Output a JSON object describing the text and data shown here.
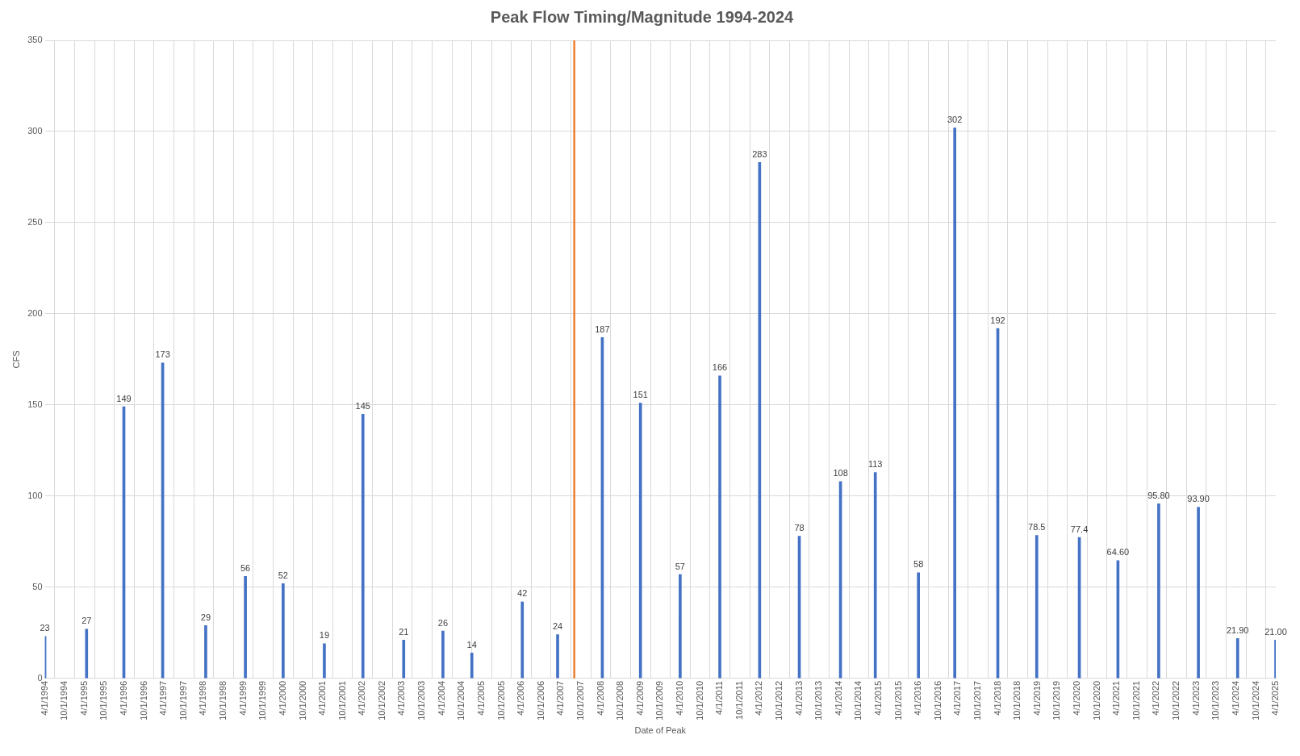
{
  "chart_data": {
    "type": "bar",
    "title": "Peak Flow Timing/Magnitude 1994-2024",
    "xlabel": "Date of Peak",
    "ylabel": "CFS",
    "x": [
      "1994-04-01",
      "1995-04-20",
      "1996-03-28",
      "1997-03-20",
      "1998-04-20",
      "1999-04-20",
      "2000-04-01",
      "2001-04-15",
      "2002-04-05",
      "2003-04-15",
      "2004-04-10",
      "2005-01-01",
      "2006-04-10",
      "2007-03-01",
      "2008-04-15",
      "2009-04-01",
      "2010-04-01",
      "2011-04-01",
      "2012-04-01",
      "2013-04-01",
      "2014-04-15",
      "2015-03-01",
      "2016-04-01",
      "2017-03-01",
      "2018-04-01",
      "2019-03-25",
      "2020-04-20",
      "2021-04-10",
      "2022-04-20",
      "2023-04-20",
      "2024-04-15",
      "2025-04-01"
    ],
    "values": [
      23,
      27,
      149,
      173,
      29,
      56,
      52,
      19,
      145,
      21,
      26,
      14,
      42,
      24,
      187,
      151,
      57,
      166,
      283,
      78,
      108,
      113,
      58,
      302,
      192,
      78.5,
      77.4,
      64.6,
      95.8,
      93.9,
      21.9,
      21
    ],
    "value_labels": [
      "23",
      "27",
      "149",
      "173",
      "29",
      "56",
      "52",
      "19",
      "145",
      "21",
      "26",
      "14",
      "42",
      "24",
      "187",
      "151",
      "57",
      "166",
      "283",
      "78",
      "108",
      "113",
      "58",
      "302",
      "192",
      "78.5",
      "77.4",
      "64.60",
      "95.80",
      "93.90",
      "21.90",
      "21.00"
    ],
    "color": "#4472c4",
    "ylim": [
      0,
      350
    ],
    "yticks": [
      0,
      50,
      100,
      150,
      200,
      250,
      300,
      350
    ],
    "xlim": [
      "1994-04-01",
      "2025-04-01"
    ],
    "xticks": [
      {
        "value": "1994-04-01",
        "label": "4/1/1994"
      },
      {
        "value": "1994-10-01",
        "label": "10/1/1994"
      },
      {
        "value": "1995-04-01",
        "label": "4/1/1995"
      },
      {
        "value": "1995-10-01",
        "label": "10/1/1995"
      },
      {
        "value": "1996-04-01",
        "label": "4/1/1996"
      },
      {
        "value": "1996-10-01",
        "label": "10/1/1996"
      },
      {
        "value": "1997-04-01",
        "label": "4/1/1997"
      },
      {
        "value": "1997-10-01",
        "label": "10/1/1997"
      },
      {
        "value": "1998-04-01",
        "label": "4/1/1998"
      },
      {
        "value": "1998-10-01",
        "label": "10/1/1998"
      },
      {
        "value": "1999-04-01",
        "label": "4/1/1999"
      },
      {
        "value": "1999-10-01",
        "label": "10/1/1999"
      },
      {
        "value": "2000-04-01",
        "label": "4/1/2000"
      },
      {
        "value": "2000-10-01",
        "label": "10/1/2000"
      },
      {
        "value": "2001-04-01",
        "label": "4/1/2001"
      },
      {
        "value": "2001-10-01",
        "label": "10/1/2001"
      },
      {
        "value": "2002-04-01",
        "label": "4/1/2002"
      },
      {
        "value": "2002-10-01",
        "label": "10/1/2002"
      },
      {
        "value": "2003-04-01",
        "label": "4/1/2003"
      },
      {
        "value": "2003-10-01",
        "label": "10/1/2003"
      },
      {
        "value": "2004-04-01",
        "label": "4/1/2004"
      },
      {
        "value": "2004-10-01",
        "label": "10/1/2004"
      },
      {
        "value": "2005-04-01",
        "label": "4/1/2005"
      },
      {
        "value": "2005-10-01",
        "label": "10/1/2005"
      },
      {
        "value": "2006-04-01",
        "label": "4/1/2006"
      },
      {
        "value": "2006-10-01",
        "label": "10/1/2006"
      },
      {
        "value": "2007-04-01",
        "label": "4/1/2007"
      },
      {
        "value": "2007-10-01",
        "label": "10/1/2007"
      },
      {
        "value": "2008-04-01",
        "label": "4/1/2008"
      },
      {
        "value": "2008-10-01",
        "label": "10/1/2008"
      },
      {
        "value": "2009-04-01",
        "label": "4/1/2009"
      },
      {
        "value": "2009-10-01",
        "label": "10/1/2009"
      },
      {
        "value": "2010-04-01",
        "label": "4/1/2010"
      },
      {
        "value": "2010-10-01",
        "label": "10/1/2010"
      },
      {
        "value": "2011-04-01",
        "label": "4/1/2011"
      },
      {
        "value": "2011-10-01",
        "label": "10/1/2011"
      },
      {
        "value": "2012-04-01",
        "label": "4/1/2012"
      },
      {
        "value": "2012-10-01",
        "label": "10/1/2012"
      },
      {
        "value": "2013-04-01",
        "label": "4/1/2013"
      },
      {
        "value": "2013-10-01",
        "label": "10/1/2013"
      },
      {
        "value": "2014-04-01",
        "label": "4/1/2014"
      },
      {
        "value": "2014-10-01",
        "label": "10/1/2014"
      },
      {
        "value": "2015-04-01",
        "label": "4/1/2015"
      },
      {
        "value": "2015-10-01",
        "label": "10/1/2015"
      },
      {
        "value": "2016-04-01",
        "label": "4/1/2016"
      },
      {
        "value": "2016-10-01",
        "label": "10/1/2016"
      },
      {
        "value": "2017-04-01",
        "label": "4/1/2017"
      },
      {
        "value": "2017-10-01",
        "label": "10/1/2017"
      },
      {
        "value": "2018-04-01",
        "label": "4/1/2018"
      },
      {
        "value": "2018-10-01",
        "label": "10/1/2018"
      },
      {
        "value": "2019-04-01",
        "label": "4/1/2019"
      },
      {
        "value": "2019-10-01",
        "label": "10/1/2019"
      },
      {
        "value": "2020-04-01",
        "label": "4/1/2020"
      },
      {
        "value": "2020-10-01",
        "label": "10/1/2020"
      },
      {
        "value": "2021-04-01",
        "label": "4/1/2021"
      },
      {
        "value": "2021-10-01",
        "label": "10/1/2021"
      },
      {
        "value": "2022-04-01",
        "label": "4/1/2022"
      },
      {
        "value": "2022-10-01",
        "label": "10/1/2022"
      },
      {
        "value": "2023-04-01",
        "label": "4/1/2023"
      },
      {
        "value": "2023-10-01",
        "label": "10/1/2023"
      },
      {
        "value": "2024-04-01",
        "label": "4/1/2024"
      },
      {
        "value": "2024-10-01",
        "label": "10/1/2024"
      },
      {
        "value": "2025-04-01",
        "label": "4/1/2025"
      }
    ],
    "ref_lines": [
      {
        "axis": "x",
        "value": "2007-08-01",
        "color": "#ed7d31"
      }
    ],
    "grid": true
  }
}
